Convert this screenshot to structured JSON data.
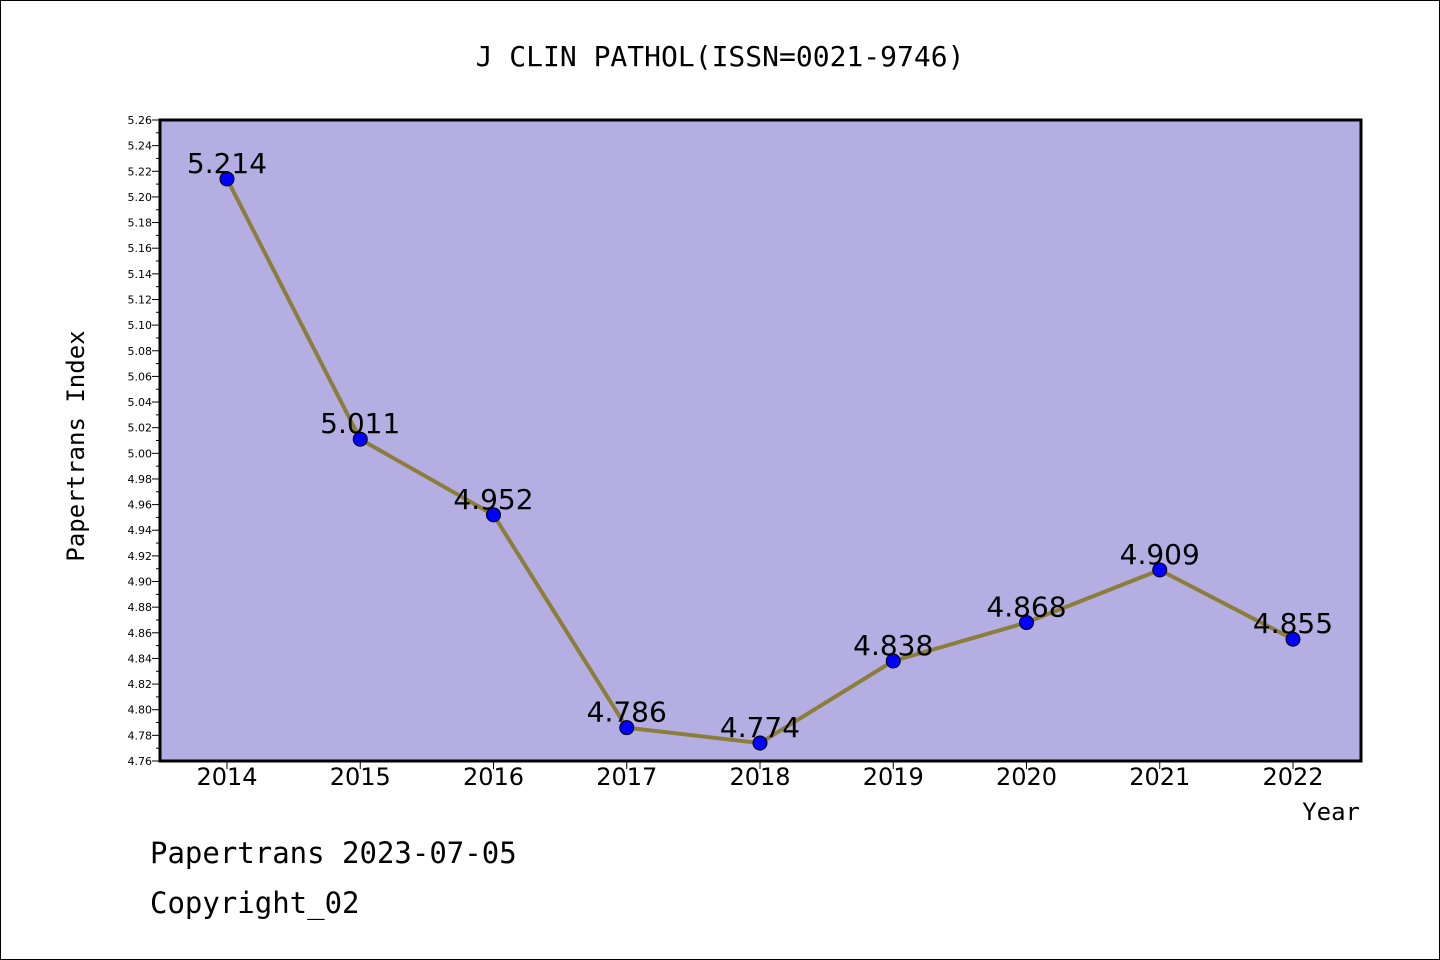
{
  "chart_data": {
    "type": "line",
    "title": "J CLIN PATHOL(ISSN=0021-9746)",
    "xlabel": "Year",
    "ylabel": "Papertrans Index",
    "ylim": [
      4.76,
      5.26
    ],
    "ytick_step": 0.02,
    "grid": false,
    "x": [
      "2014",
      "2015",
      "2016",
      "2017",
      "2018",
      "2019",
      "2020",
      "2021",
      "2022"
    ],
    "series": [
      {
        "values": [
          5.214,
          5.011,
          4.952,
          4.786,
          4.774,
          4.838,
          4.868,
          4.909,
          4.855
        ]
      }
    ],
    "data_labels": [
      "5.214",
      "5.011",
      "4.952",
      "4.786",
      "4.774",
      "4.838",
      "4.868",
      "4.909",
      "4.855"
    ],
    "colors": {
      "plot_background": "#b4aee2",
      "line": "#8b7d3a",
      "marker": "#0000ff"
    }
  },
  "footer": {
    "line1": "Papertrans 2023-07-05",
    "line2": "Copyright_02"
  }
}
